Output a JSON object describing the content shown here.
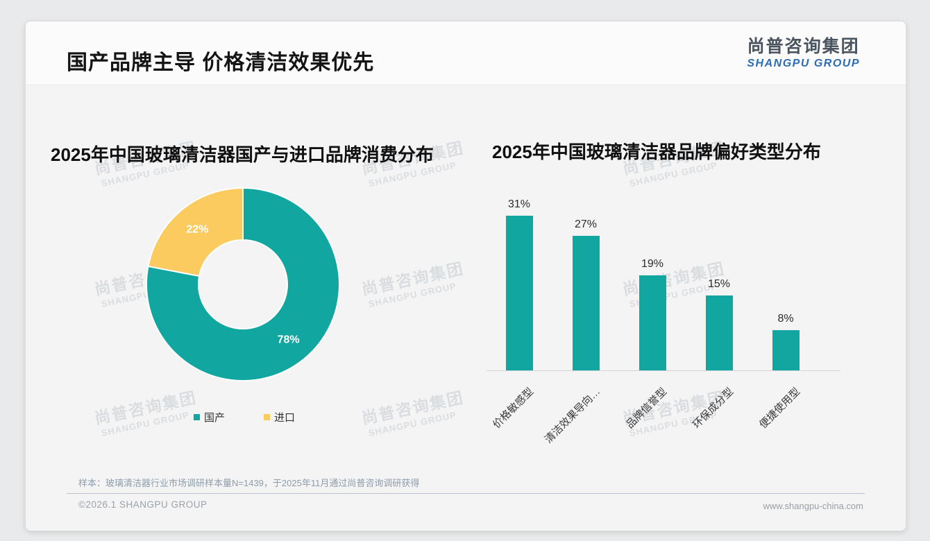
{
  "page": {
    "title": "国产品牌主导 价格清洁效果优先",
    "logo": {
      "cn": "尚普咨询集团",
      "en": "SHANGPU GROUP"
    },
    "watermark": {
      "line1": "尚普咨询集团",
      "line2": "SHANGPU GROUP"
    },
    "footer": {
      "sample_note": "样本：玻璃清洁器行业市场调研样本量N=1439，于2025年11月通过尚普咨询调研获得",
      "copyright": "©2026.1 SHANGPU GROUP",
      "website": "www.shangpu-china.com"
    }
  },
  "colors": {
    "teal": "#11a7a0",
    "yellow": "#fbcb5f",
    "logo_blue": "#2d6cb3",
    "logo_dark": "#4a545e"
  },
  "chart_data": [
    {
      "type": "pie",
      "title": "2025年中国玻璃清洁器国产与进口品牌消费分布",
      "labels": [
        "国产",
        "进口"
      ],
      "values": [
        78,
        22
      ],
      "value_labels": [
        "78%",
        "22%"
      ],
      "colors": [
        "#11a7a0",
        "#fbcb5f"
      ],
      "donut": true,
      "start_angle": "12-o'clock, clockwise",
      "legend_position": "bottom"
    },
    {
      "type": "bar",
      "title": "2025年中国玻璃清洁器品牌偏好类型分布",
      "categories": [
        "价格敏感型",
        "清洁效果导向…",
        "品牌信誉型",
        "环保成分型",
        "便捷使用型"
      ],
      "values": [
        31,
        27,
        19,
        15,
        8
      ],
      "value_labels": [
        "31%",
        "27%",
        "19%",
        "15%",
        "8%"
      ],
      "bar_color": "#11a7a0",
      "xlabel": "",
      "ylabel": "",
      "ylim": [
        0,
        34
      ],
      "grid": false,
      "x_tick_rotation": 45
    }
  ]
}
